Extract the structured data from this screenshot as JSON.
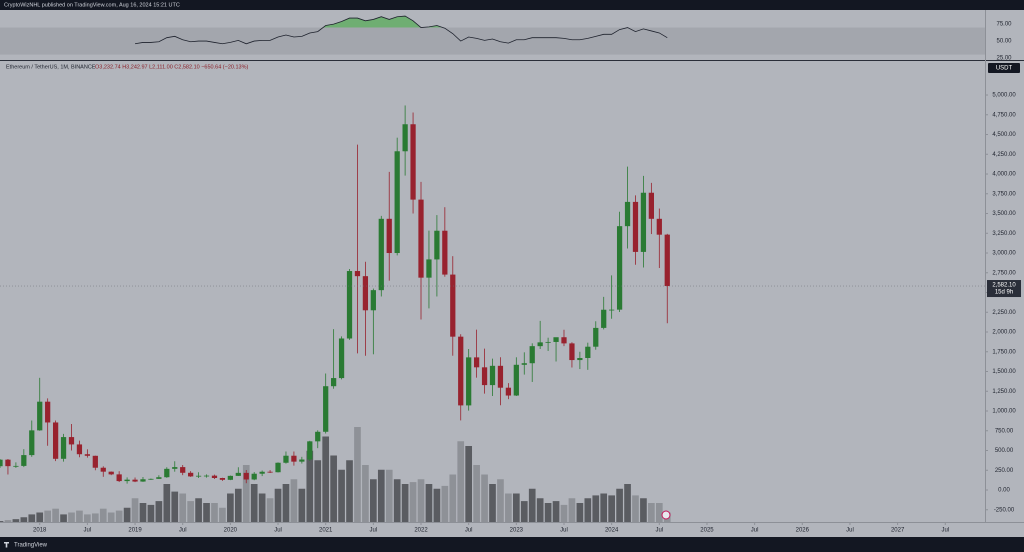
{
  "header": {
    "publisher": "CryptoWizNHL published on TradingView.com, Aug 16, 2024 15:21 UTC"
  },
  "chart_data": {
    "type": "candlestick",
    "title": "Ethereum / TetherUS, 1M, BINANCE",
    "ohlc_legend": "O3,232.74 H3,242.97 L2,111.00 C2,582.10 −650.64 (−20.13%)",
    "currency": "USDT",
    "last_price_label": "2,582.10",
    "countdown": "15d 9h",
    "up_color": "#2a7a33",
    "down_color": "#98222e",
    "volume_up_color": "#5a5c61",
    "volume_down_color": "#8e9197",
    "x": [
      "2017-08",
      "2017-09",
      "2017-10",
      "2017-11",
      "2017-12",
      "2018-01",
      "2018-02",
      "2018-03",
      "2018-04",
      "2018-05",
      "2018-06",
      "2018-07",
      "2018-08",
      "2018-09",
      "2018-10",
      "2018-11",
      "2018-12",
      "2019-01",
      "2019-02",
      "2019-03",
      "2019-04",
      "2019-05",
      "2019-06",
      "2019-07",
      "2019-08",
      "2019-09",
      "2019-10",
      "2019-11",
      "2019-12",
      "2020-01",
      "2020-02",
      "2020-03",
      "2020-04",
      "2020-05",
      "2020-06",
      "2020-07",
      "2020-08",
      "2020-09",
      "2020-10",
      "2020-11",
      "2020-12",
      "2021-01",
      "2021-02",
      "2021-03",
      "2021-04",
      "2021-05",
      "2021-06",
      "2021-07",
      "2021-08",
      "2021-09",
      "2021-10",
      "2021-11",
      "2021-12",
      "2022-01",
      "2022-02",
      "2022-03",
      "2022-04",
      "2022-05",
      "2022-06",
      "2022-07",
      "2022-08",
      "2022-09",
      "2022-10",
      "2022-11",
      "2022-12",
      "2023-01",
      "2023-02",
      "2023-03",
      "2023-04",
      "2023-05",
      "2023-06",
      "2023-07",
      "2023-08",
      "2023-09",
      "2023-10",
      "2023-11",
      "2023-12",
      "2024-01",
      "2024-02",
      "2024-03",
      "2024-04",
      "2024-05",
      "2024-06",
      "2024-07",
      "2024-08"
    ],
    "open": [
      301,
      384,
      302,
      305,
      442,
      755,
      1118,
      855,
      395,
      670,
      577,
      453,
      433,
      282,
      232,
      198,
      113,
      131,
      107,
      136,
      141,
      162,
      268,
      290,
      218,
      172,
      180,
      182,
      152,
      129,
      179,
      217,
      133,
      206,
      231,
      225,
      345,
      434,
      359,
      386,
      616,
      737,
      1314,
      1417,
      1918,
      2772,
      2707,
      2275,
      2530,
      3433,
      3000,
      4288,
      4630,
      3676,
      2688,
      2919,
      3282,
      2727,
      1941,
      1071,
      1679,
      1553,
      1328,
      1572,
      1295,
      1196,
      1585,
      1605,
      1821,
      1869,
      1874,
      1934,
      1856,
      1645,
      1671,
      1814,
      2052,
      2282,
      2283,
      3340,
      3647,
      3014,
      3763,
      3433,
      3232.74
    ],
    "high": [
      393,
      392,
      350,
      517,
      880,
      1420,
      1160,
      880,
      710,
      835,
      625,
      515,
      434,
      300,
      235,
      238,
      160,
      159,
      164,
      145,
      187,
      288,
      364,
      316,
      239,
      225,
      198,
      195,
      155,
      183,
      288,
      253,
      227,
      247,
      252,
      349,
      488,
      488,
      420,
      623,
      756,
      1475,
      2036,
      1945,
      2797,
      4372,
      2890,
      2550,
      3470,
      4027,
      4460,
      4868,
      4778,
      3900,
      3284,
      3480,
      3580,
      2960,
      1972,
      1785,
      2030,
      1790,
      1663,
      1680,
      1353,
      1680,
      1743,
      1857,
      2141,
      1928,
      1930,
      2029,
      1870,
      1750,
      1865,
      2136,
      2445,
      2717,
      3523,
      4093,
      3730,
      3977,
      3888,
      3563,
      3242.97
    ],
    "low": [
      278,
      197,
      280,
      290,
      420,
      750,
      560,
      366,
      360,
      500,
      414,
      410,
      250,
      167,
      188,
      101,
      81,
      100,
      103,
      127,
      140,
      154,
      232,
      188,
      166,
      152,
      156,
      139,
      116,
      125,
      178,
      86,
      124,
      176,
      216,
      222,
      334,
      309,
      335,
      367,
      530,
      715,
      1282,
      1400,
      1900,
      1730,
      1700,
      1718,
      2450,
      2650,
      2970,
      3980,
      3500,
      2159,
      2300,
      2450,
      2700,
      1700,
      881,
      1005,
      1422,
      1220,
      1190,
      1073,
      1150,
      1190,
      1461,
      1368,
      1785,
      1760,
      1626,
      1821,
      1550,
      1531,
      1521,
      1776,
      2033,
      2168,
      2254,
      3057,
      2852,
      2817,
      3240,
      2810,
      2111.0
    ],
    "close": [
      384,
      302,
      305,
      442,
      755,
      1118,
      855,
      395,
      670,
      577,
      453,
      433,
      282,
      232,
      198,
      113,
      131,
      107,
      136,
      141,
      162,
      268,
      290,
      218,
      172,
      180,
      182,
      152,
      129,
      179,
      217,
      133,
      206,
      231,
      225,
      345,
      434,
      359,
      386,
      616,
      737,
      1314,
      1417,
      1918,
      2772,
      2707,
      2275,
      2530,
      3433,
      3000,
      4288,
      4630,
      3676,
      2688,
      2919,
      3282,
      2727,
      1941,
      1071,
      1679,
      1553,
      1328,
      1572,
      1295,
      1196,
      1585,
      1605,
      1821,
      1869,
      1874,
      1934,
      1856,
      1645,
      1671,
      1814,
      2052,
      2282,
      2283,
      3340,
      3647,
      3014,
      3763,
      3433,
      3232,
      2582.1
    ],
    "volume": [
      1,
      2,
      3,
      5,
      8,
      10,
      12,
      14,
      8,
      10,
      12,
      8,
      9,
      14,
      10,
      12,
      15,
      25,
      20,
      18,
      22,
      40,
      32,
      30,
      22,
      25,
      20,
      20,
      15,
      30,
      35,
      60,
      40,
      30,
      25,
      35,
      40,
      45,
      35,
      75,
      65,
      90,
      70,
      55,
      65,
      100,
      60,
      45,
      55,
      55,
      45,
      40,
      42,
      45,
      40,
      35,
      38,
      50,
      85,
      80,
      60,
      50,
      40,
      45,
      30,
      30,
      22,
      35,
      25,
      20,
      22,
      18,
      25,
      20,
      25,
      28,
      30,
      28,
      35,
      40,
      28,
      25,
      20,
      20,
      10
    ],
    "xlim": [
      "2017-08",
      "2027-12"
    ],
    "xticks": [
      {
        "value": "2018-01",
        "label": "2018"
      },
      {
        "value": "2018-07",
        "label": "Jul"
      },
      {
        "value": "2019-01",
        "label": "2019"
      },
      {
        "value": "2019-07",
        "label": "Jul"
      },
      {
        "value": "2020-01",
        "label": "2020"
      },
      {
        "value": "2020-07",
        "label": "Jul"
      },
      {
        "value": "2021-01",
        "label": "2021"
      },
      {
        "value": "2021-07",
        "label": "Jul"
      },
      {
        "value": "2022-01",
        "label": "2022"
      },
      {
        "value": "2022-07",
        "label": "Jul"
      },
      {
        "value": "2023-01",
        "label": "2023"
      },
      {
        "value": "2023-07",
        "label": "Jul"
      },
      {
        "value": "2024-01",
        "label": "2024"
      },
      {
        "value": "2024-07",
        "label": "Jul"
      },
      {
        "value": "2025-01",
        "label": "2025"
      },
      {
        "value": "2025-07",
        "label": "Jul"
      },
      {
        "value": "2026-01",
        "label": "2026"
      },
      {
        "value": "2026-07",
        "label": "Jul"
      },
      {
        "value": "2027-01",
        "label": "2027"
      },
      {
        "value": "2027-07",
        "label": "Jul"
      }
    ],
    "ylim": [
      -405,
      5418
    ],
    "yticks": [
      {
        "value": -250,
        "label": "-250.00"
      },
      {
        "value": 0,
        "label": "0.00"
      },
      {
        "value": 250,
        "label": "250.00"
      },
      {
        "value": 500,
        "label": "500.00"
      },
      {
        "value": 750,
        "label": "750.00"
      },
      {
        "value": 1000,
        "label": "1,000.00"
      },
      {
        "value": 1250,
        "label": "1,250.00"
      },
      {
        "value": 1500,
        "label": "1,500.00"
      },
      {
        "value": 1750,
        "label": "1,750.00"
      },
      {
        "value": 2000,
        "label": "2,000.00"
      },
      {
        "value": 2250,
        "label": "2,250.00"
      },
      {
        "value": 2500,
        "label": "2,500.00"
      },
      {
        "value": 2750,
        "label": "2,750.00"
      },
      {
        "value": 3000,
        "label": "3,000.00"
      },
      {
        "value": 3250,
        "label": "3,250.00"
      },
      {
        "value": 3500,
        "label": "3,500.00"
      },
      {
        "value": 3750,
        "label": "3,750.00"
      },
      {
        "value": 4000,
        "label": "4,000.00"
      },
      {
        "value": 4250,
        "label": "4,250.00"
      },
      {
        "value": 4500,
        "label": "4,500.00"
      },
      {
        "value": 4750,
        "label": "4,750.00"
      },
      {
        "value": 5000,
        "label": "5,000.00"
      }
    ],
    "rsi": {
      "color": "#1e222d",
      "overbought_fill": "#6fae72",
      "band_color": "#a3a6ad",
      "overbought": 70,
      "oversold": 30,
      "ylim": [
        22,
        93
      ],
      "yticks": [
        {
          "value": 25,
          "label": "25.00"
        },
        {
          "value": 50,
          "label": "50.00"
        },
        {
          "value": 75,
          "label": "75.00"
        }
      ],
      "values": [
        null,
        null,
        null,
        null,
        null,
        null,
        null,
        null,
        null,
        null,
        null,
        null,
        null,
        null,
        null,
        null,
        null,
        46,
        48,
        48,
        49,
        55,
        57,
        52,
        49,
        50,
        50,
        48,
        46,
        48,
        51,
        46,
        50,
        51,
        51,
        56,
        59,
        56,
        57,
        62,
        64,
        73,
        75,
        79,
        84,
        84,
        80,
        82,
        86,
        82,
        86,
        87,
        80,
        70,
        71,
        73,
        69,
        61,
        50,
        56,
        54,
        51,
        53,
        49,
        47,
        52,
        52,
        55,
        55,
        55,
        55,
        54,
        52,
        52,
        54,
        57,
        60,
        60,
        67,
        70,
        64,
        68,
        65,
        62,
        55
      ]
    }
  },
  "footer": {
    "brand": "TradingView"
  }
}
